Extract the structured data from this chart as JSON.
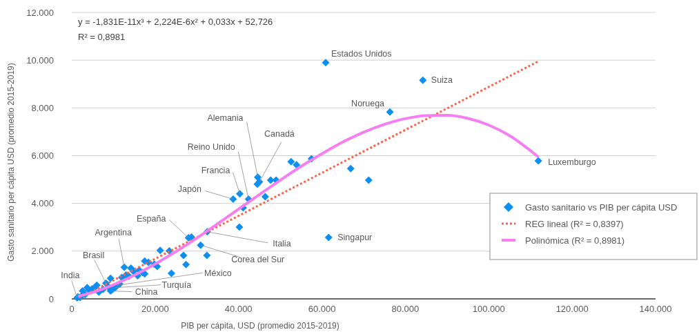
{
  "chart_data": {
    "type": "scatter",
    "xlabel": "PIB per cápita, USD (promedio 2015-2019)",
    "ylabel": "Gasto sanitario per cápita USD (promedio 2015-2019)",
    "xlim": [
      0,
      140000
    ],
    "xticks": [
      0,
      {
        "value": 20000,
        "label": "20.000"
      },
      {
        "value": 40000,
        "label": "40.000"
      },
      {
        "value": 60000,
        "label": "60.000"
      },
      {
        "value": 80000,
        "label": "80.000"
      },
      {
        "value": 100000,
        "label": "100.000"
      },
      {
        "value": 120000,
        "label": "120.000"
      },
      {
        "value": 140000,
        "label": "140.000"
      }
    ],
    "ylim": [
      0,
      12000
    ],
    "yticks": [
      0,
      {
        "value": 2000,
        "label": "2.000"
      },
      {
        "value": 4000,
        "label": "4.000"
      },
      {
        "value": 6000,
        "label": "6.000"
      },
      {
        "value": 8000,
        "label": "8.000"
      },
      {
        "value": 10000,
        "label": "10.000"
      },
      {
        "value": 12000,
        "label": "12.000"
      }
    ],
    "grid": "y",
    "legend": "right",
    "series": [
      {
        "name": "Gasto sanitario vs PIB per cápita USD",
        "marker": "diamond",
        "color": "#0b8ff2",
        "x": [
          60900,
          84200,
          76300,
          111900,
          61600,
          44600,
          45000,
          44500,
          42400,
          40300,
          38700,
          28000,
          28700,
          32500,
          30900,
          12600,
          8200,
          1300,
          10900,
          10400,
          9300,
          66900,
          71200,
          57500,
          52600,
          53900,
          47700,
          49000,
          41100,
          46400,
          40200,
          32400,
          21200,
          23400,
          26800,
          27400,
          23900,
          20500,
          17500,
          18400,
          17000,
          17500,
          15800,
          14200,
          14800,
          13700,
          12000,
          9300,
          6000,
          6500,
          4900,
          3700,
          2600,
          3200,
          1500,
          2000,
          7500,
          8800,
          5500,
          4200,
          9800,
          2800,
          11500,
          16200,
          19800,
          13000
        ],
        "values": [
          9900,
          9160,
          7830,
          5780,
          2570,
          5100,
          4900,
          4810,
          4180,
          4400,
          4180,
          2560,
          2590,
          2810,
          2250,
          1320,
          660,
          40,
          570,
          470,
          330,
          5460,
          4970,
          5870,
          5750,
          5620,
          4970,
          4970,
          3820,
          4280,
          3010,
          1820,
          2030,
          2010,
          1820,
          1440,
          1070,
          1360,
          1580,
          1530,
          1100,
          1050,
          970,
          1290,
          1150,
          950,
          900,
          860,
          570,
          280,
          420,
          470,
          330,
          180,
          90,
          60,
          400,
          500,
          480,
          350,
          400,
          200,
          620,
          1200,
          1450,
          1000
        ]
      },
      {
        "name": "REG lineal (R² = 0,8397)",
        "type": "line",
        "line_style": "dotted",
        "color": "#f9644c",
        "x": [
          1800,
          111900
        ],
        "values": [
          40,
          9950
        ]
      },
      {
        "name": "Polinómica (R² = 0,8981)",
        "type": "line",
        "line_style": "solid",
        "color": "#f57ff0",
        "x": [
          1500,
          5000,
          10000,
          15000,
          20000,
          25000,
          30000,
          35000,
          40000,
          45000,
          50000,
          55000,
          60000,
          65000,
          70000,
          75000,
          80000,
          85000,
          90000,
          95000,
          100000,
          105000,
          111900
        ],
        "values": [
          110,
          270,
          590,
          990,
          1460,
          1980,
          2550,
          3150,
          3760,
          4370,
          4970,
          5550,
          6080,
          6570,
          6980,
          7310,
          7550,
          7680,
          7690,
          7560,
          7280,
          6840,
          5940
        ]
      }
    ],
    "annotations": [
      "y = -1,831E-11x³ + 2,224E-6x² + 0,033x + 52,726",
      "R² = 0,8981",
      {
        "text": "Estados Unidos",
        "x": 60900,
        "y": 9900
      },
      {
        "text": "Suiza",
        "x": 84200,
        "y": 9160
      },
      {
        "text": "Noruega",
        "x": 76300,
        "y": 7830
      },
      {
        "text": "Luxemburgo",
        "x": 111900,
        "y": 5780
      },
      {
        "text": "Singapur",
        "x": 61600,
        "y": 2570
      },
      {
        "text": "Alemania",
        "x": 44600,
        "y": 5100
      },
      {
        "text": "Canadá",
        "x": 45000,
        "y": 4900
      },
      {
        "text": "Reino Unido",
        "x": 42400,
        "y": 4180
      },
      {
        "text": "Francia",
        "x": 40300,
        "y": 4400
      },
      {
        "text": "Japón",
        "x": 38700,
        "y": 4180
      },
      {
        "text": "España",
        "x": 28000,
        "y": 2560
      },
      {
        "text": "Italia",
        "x": 32500,
        "y": 2810
      },
      {
        "text": "Corea del Sur",
        "x": 30900,
        "y": 2250
      },
      {
        "text": "Argentina",
        "x": 12600,
        "y": 1320
      },
      {
        "text": "Brasil",
        "x": 8200,
        "y": 660
      },
      {
        "text": "India",
        "x": 1300,
        "y": 40
      },
      {
        "text": "México",
        "x": 10900,
        "y": 570
      },
      {
        "text": "Turquía",
        "x": 10400,
        "y": 470
      },
      {
        "text": "China",
        "x": 9300,
        "y": 330
      }
    ]
  }
}
